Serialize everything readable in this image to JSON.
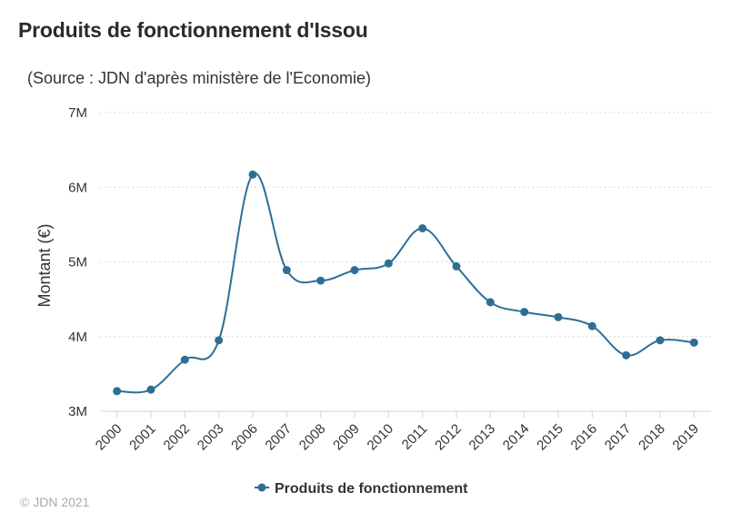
{
  "chart_data": {
    "type": "line",
    "title": "Produits de fonctionnement d'Issou",
    "subtitle": "(Source : JDN d'après ministère de l'Economie)",
    "xlabel": "",
    "ylabel": "Montant (€)",
    "categories": [
      "2000",
      "2001",
      "2002",
      "2003",
      "2006",
      "2007",
      "2008",
      "2009",
      "2010",
      "2011",
      "2012",
      "2013",
      "2014",
      "2015",
      "2016",
      "2017",
      "2018",
      "2019"
    ],
    "series": [
      {
        "name": "Produits de fonctionnement",
        "color": "#2e6e96",
        "values": [
          3270000,
          3290000,
          3690000,
          3950000,
          6170000,
          4890000,
          4750000,
          4890000,
          4980000,
          5450000,
          4940000,
          4460000,
          4330000,
          4260000,
          4140000,
          3750000,
          3950000,
          3920000
        ]
      }
    ],
    "ylim": [
      3000000,
      7000000
    ],
    "yticks": [
      3000000,
      4000000,
      5000000,
      6000000,
      7000000
    ],
    "ytick_labels": [
      "3M",
      "4M",
      "5M",
      "6M",
      "7M"
    ],
    "grid": "horizontal dotted",
    "legend": "bottom-center"
  },
  "footer": {
    "copyright": "© JDN 2021"
  }
}
